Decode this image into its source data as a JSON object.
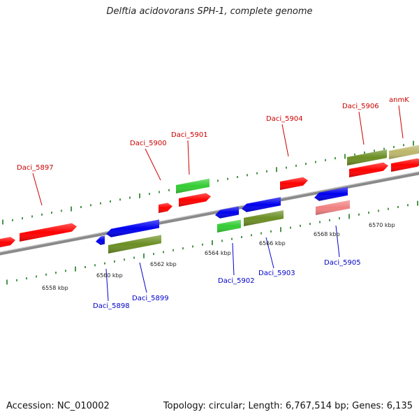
{
  "header": {
    "title": "Delftia acidovorans SPH-1, complete genome"
  },
  "footer": {
    "accession": "Accession: NC_010002",
    "summary": "Topology: circular; Length: 6,767,514 bp; Genes: 6,135"
  },
  "colors": {
    "backbone": "#8a8a8a",
    "tick_forward": "#1e7a1e",
    "tick_reverse": "#1e7a1e",
    "forward_label": "#cc0000",
    "reverse_label": "#0000cc",
    "red_gene": "#ff0000",
    "blue_gene": "#0000ee",
    "green_gene": "#33cc33",
    "olive_gene": "#6b8e23",
    "pink_gene": "#f08080",
    "khaki_gene": "#bdb76b"
  },
  "axis_labels": [
    "6558 kbp",
    "6560 kbp",
    "6562 kbp",
    "6564 kbp",
    "6566 kbp",
    "6568 kbp",
    "6570 kbp"
  ],
  "gene_labels_forward": [
    "Daci_5897",
    "Daci_5900",
    "Daci_5901",
    "Daci_5904",
    "Daci_5906",
    "anmK"
  ],
  "gene_labels_reverse": [
    "Daci_5898",
    "Daci_5899",
    "Daci_5902",
    "Daci_5903",
    "Daci_5905"
  ]
}
